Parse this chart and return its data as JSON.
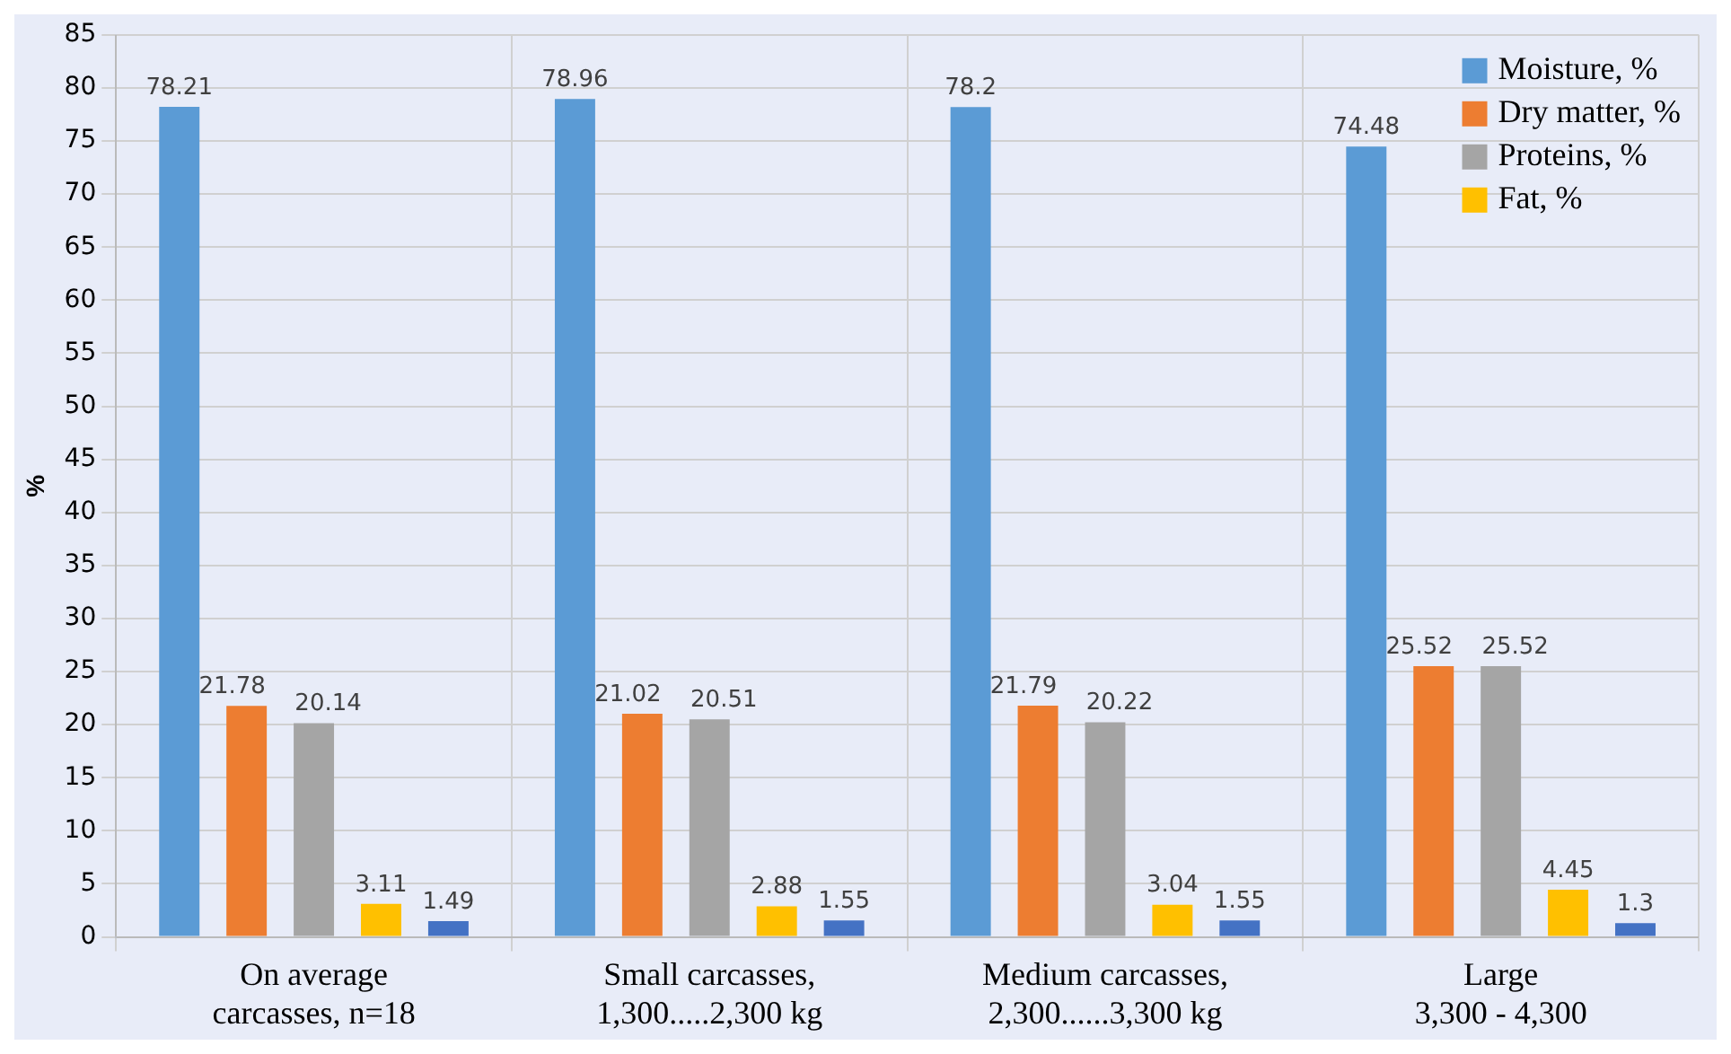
{
  "chart_data": {
    "type": "bar",
    "ylabel": "%",
    "categories": [
      "On average\ncarcasses, n=18",
      "Small carcasses,\n1,300.....2,300 kg",
      "Medium carcasses,\n2,300......3,300 kg",
      "Large\n3,300 - 4,300"
    ],
    "series": [
      {
        "name": "Moisture, %",
        "color": "#5b9bd5",
        "values": [
          78.21,
          78.96,
          78.2,
          74.48
        ]
      },
      {
        "name": "Dry matter, %",
        "color": "#ed7d31",
        "values": [
          21.78,
          21.02,
          21.79,
          25.52
        ]
      },
      {
        "name": "Proteins, %",
        "color": "#a5a5a5",
        "values": [
          20.14,
          20.51,
          20.22,
          25.52
        ]
      },
      {
        "name": "Fat, %",
        "color": "#ffc000",
        "values": [
          3.11,
          2.88,
          3.04,
          4.45
        ]
      },
      {
        "color": "#4472c4",
        "values": [
          1.49,
          1.55,
          1.55,
          1.3
        ]
      }
    ],
    "ylim": [
      0,
      85
    ],
    "yticks": [
      0,
      5,
      10,
      15,
      20,
      25,
      30,
      35,
      40,
      45,
      50,
      55,
      60,
      65,
      70,
      75,
      80,
      85
    ],
    "grid": true,
    "legend": "top right",
    "data_labels": true
  }
}
